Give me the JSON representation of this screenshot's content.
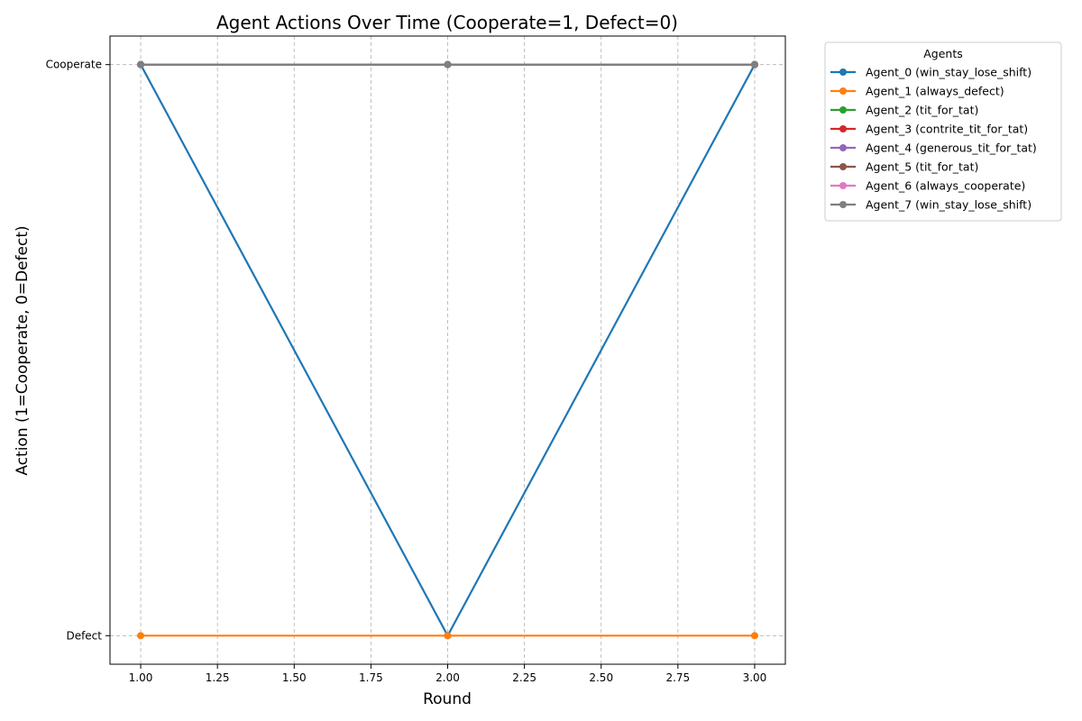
{
  "chart_data": {
    "type": "line",
    "title": "Agent Actions Over Time (Cooperate=1, Defect=0)",
    "xlabel": "Round",
    "ylabel": "Action (1=Cooperate, 0=Defect)",
    "x": [
      1,
      2,
      3
    ],
    "xlim": [
      0.9,
      3.1
    ],
    "ylim": [
      -0.05,
      1.05
    ],
    "xticks": [
      1.0,
      1.25,
      1.5,
      1.75,
      2.0,
      2.25,
      2.5,
      2.75,
      3.0
    ],
    "xtick_labels": [
      "1.00",
      "1.25",
      "1.50",
      "1.75",
      "2.00",
      "2.25",
      "2.50",
      "2.75",
      "3.00"
    ],
    "yticks": [
      0,
      1
    ],
    "ytick_labels": [
      "Defect",
      "Cooperate"
    ],
    "grid": true,
    "legend_title": "Agents",
    "legend_position": "outside-top-right",
    "series": [
      {
        "name": "Agent_0 (win_stay_lose_shift)",
        "color": "#1f77b4",
        "values": [
          1,
          0,
          1
        ]
      },
      {
        "name": "Agent_1 (always_defect)",
        "color": "#ff7f0e",
        "values": [
          0,
          0,
          0
        ]
      },
      {
        "name": "Agent_2 (tit_for_tat)",
        "color": "#2ca02c",
        "values": [
          1,
          1,
          1
        ]
      },
      {
        "name": "Agent_3 (contrite_tit_for_tat)",
        "color": "#d62728",
        "values": [
          1,
          1,
          1
        ]
      },
      {
        "name": "Agent_4 (generous_tit_for_tat)",
        "color": "#9467bd",
        "values": [
          1,
          1,
          1
        ]
      },
      {
        "name": "Agent_5 (tit_for_tat)",
        "color": "#8c564b",
        "values": [
          1,
          1,
          1
        ]
      },
      {
        "name": "Agent_6 (always_cooperate)",
        "color": "#e377c2",
        "values": [
          1,
          1,
          1
        ]
      },
      {
        "name": "Agent_7 (win_stay_lose_shift)",
        "color": "#7f7f7f",
        "values": [
          1,
          1,
          1
        ]
      }
    ]
  }
}
